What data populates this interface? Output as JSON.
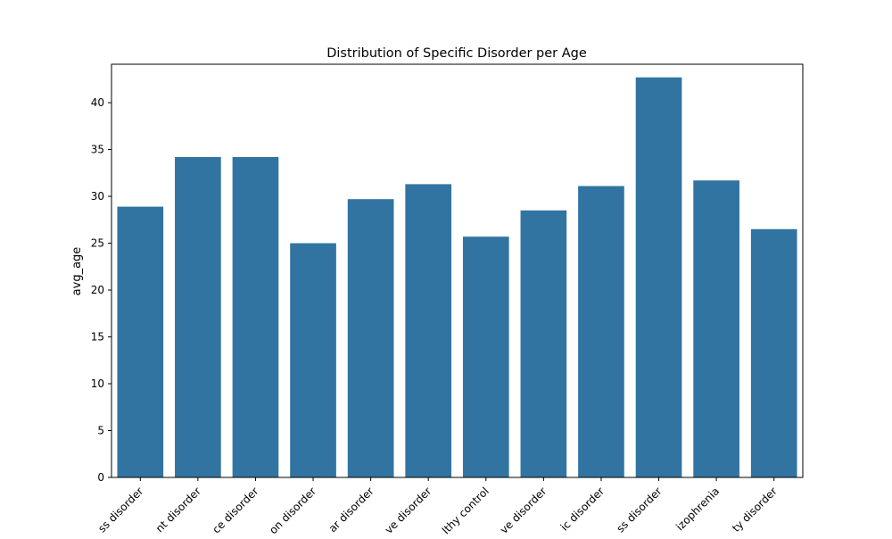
{
  "chart_data": {
    "type": "bar",
    "title": "Distribution of Specific Disorder per Age",
    "xlabel": "",
    "ylabel": "avg_age",
    "categories": [
      "ss disorder",
      "nt disorder",
      "ce disorder",
      "on disorder",
      "ar disorder",
      "ve disorder",
      "lthy control",
      "ve disorder",
      "ic disorder",
      "ss disorder",
      "izophrenia",
      "ty disorder"
    ],
    "values": [
      28.9,
      34.2,
      34.2,
      25.0,
      29.7,
      31.3,
      25.7,
      28.5,
      31.1,
      42.7,
      31.7,
      26.5
    ],
    "ylim": [
      0,
      44.1
    ],
    "yticks": [
      0,
      5,
      10,
      15,
      20,
      25,
      30,
      35,
      40
    ],
    "ytick_labels": [
      "0",
      "5",
      "10",
      "15",
      "20",
      "25",
      "30",
      "35",
      "40"
    ],
    "bar_color": "#3274a1",
    "grid": false,
    "legend": "none"
  }
}
